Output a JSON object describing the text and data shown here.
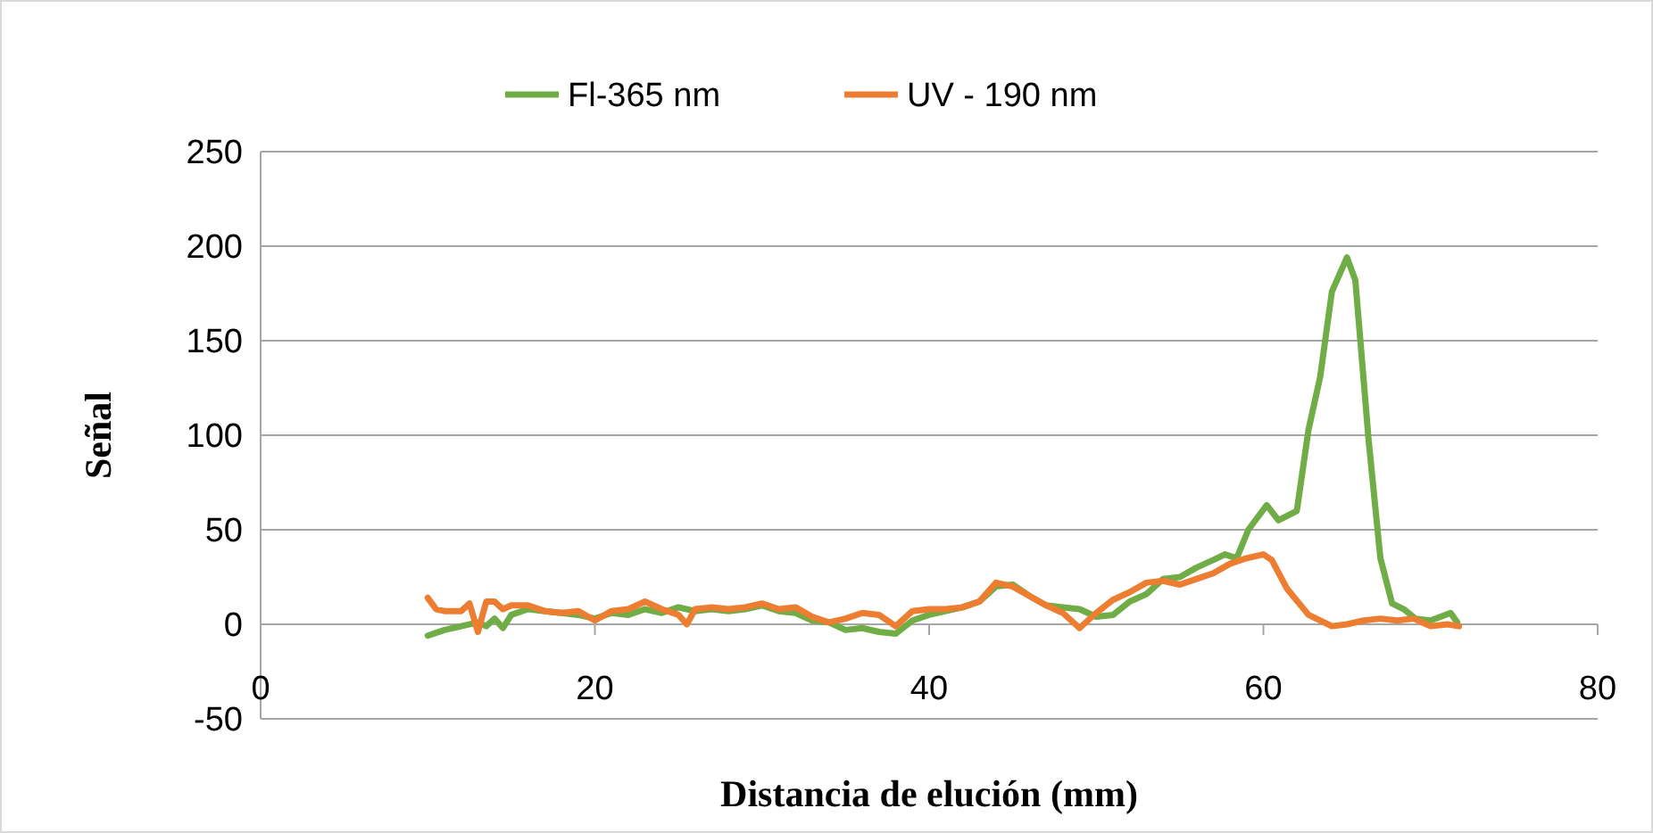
{
  "chart_data": {
    "type": "line",
    "xlabel": "Distancia de elución (mm)",
    "ylabel": "Señal",
    "xlim": [
      0,
      80
    ],
    "xticks": [
      0,
      20,
      40,
      60,
      80
    ],
    "ylim": [
      -50,
      250
    ],
    "yticks": [
      -50,
      0,
      50,
      100,
      150,
      200,
      250
    ],
    "grid": "y",
    "legend": "top",
    "marker": "none",
    "line_style": "solid",
    "series": [
      {
        "name": "Fl-365 nm",
        "color": "#70ad47",
        "x": [
          10,
          11,
          12,
          13,
          13.5,
          14,
          14.5,
          15,
          16,
          17,
          18,
          19,
          20,
          21,
          22,
          23,
          24,
          25,
          26,
          27,
          28,
          29,
          30,
          31,
          32,
          33,
          34,
          35,
          36,
          37,
          38,
          39,
          40,
          41,
          42,
          43,
          44,
          45,
          46,
          47,
          48,
          49,
          50,
          51,
          52,
          53,
          54,
          55,
          56,
          57,
          57.7,
          58.4,
          59.1,
          60.2,
          60.9,
          62,
          62.7,
          63.4,
          64.1,
          65,
          65.5,
          66.3,
          67,
          67.7,
          68.4,
          69.1,
          70,
          71.2,
          71.6
        ],
        "values": [
          -6,
          -3,
          -1,
          1,
          -1,
          3,
          -2,
          5,
          8,
          7,
          6,
          5,
          3,
          6,
          5,
          8,
          6,
          9,
          7,
          8,
          7,
          8,
          10,
          7,
          6,
          2,
          1,
          -3,
          -2,
          -4,
          -5,
          2,
          5,
          7,
          9,
          12,
          20,
          21,
          15,
          10,
          9,
          8,
          4,
          5,
          12,
          16,
          24,
          25,
          30,
          34,
          37,
          35,
          50,
          63,
          55,
          60,
          103,
          131,
          176,
          194,
          182,
          97,
          35,
          11,
          8,
          3,
          2,
          6,
          1
        ]
      },
      {
        "name": "UV - 190 nm",
        "color": "#ed7d31",
        "x": [
          10,
          10.5,
          11,
          12,
          12.5,
          13,
          13.5,
          14,
          14.5,
          15,
          16,
          17,
          18,
          19,
          20,
          21,
          22,
          23,
          24,
          25,
          25.5,
          26,
          27,
          28,
          29,
          30,
          31,
          32,
          33,
          34,
          35,
          36,
          37,
          38,
          39,
          40,
          41,
          42,
          43,
          44,
          45,
          46,
          47,
          48,
          49,
          50,
          51,
          52,
          53,
          54,
          55,
          56,
          57,
          58,
          59,
          60,
          60.5,
          61.4,
          62.7,
          64.1,
          65,
          66,
          67,
          68,
          69,
          70,
          71,
          71.7
        ],
        "values": [
          14,
          8,
          7,
          7,
          11,
          -4,
          12,
          12,
          8,
          10,
          10,
          7,
          6,
          7,
          2,
          7,
          8,
          12,
          8,
          5,
          0,
          8,
          9,
          8,
          9,
          11,
          8,
          9,
          4,
          1,
          3,
          6,
          5,
          -1,
          7,
          8,
          8,
          9,
          12,
          22,
          20,
          15,
          10,
          6,
          -2,
          6,
          13,
          17,
          22,
          23,
          21,
          24,
          27,
          32,
          35,
          37,
          34,
          19,
          5,
          -1,
          0,
          2,
          3,
          2,
          3,
          -1,
          0,
          -1
        ]
      }
    ]
  }
}
